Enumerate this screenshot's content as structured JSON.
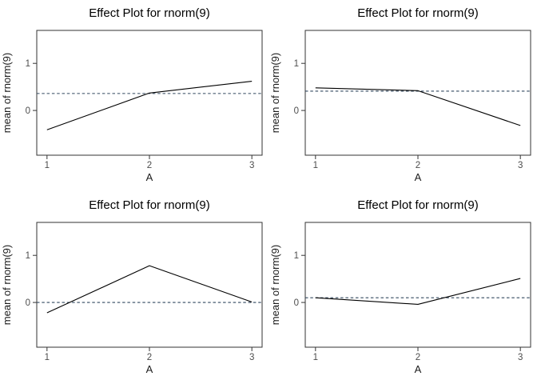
{
  "chart_data": [
    {
      "type": "line",
      "title": "Effect Plot for rnorm(9)",
      "xlabel": "A",
      "ylabel": "mean of rnorm(9)",
      "x": [
        1,
        2,
        3
      ],
      "values": [
        -0.41,
        0.37,
        0.62
      ],
      "mean_line": 0.36,
      "mean_line_style": "dashed",
      "xticks": [
        "1",
        "2",
        "3"
      ],
      "yticks": [
        "0",
        "1"
      ],
      "xlim": [
        0.9,
        3.1
      ],
      "ylim": [
        -0.95,
        1.7
      ],
      "grid": false,
      "legend": "none"
    },
    {
      "type": "line",
      "title": "Effect Plot for rnorm(9)",
      "xlabel": "A",
      "ylabel": "mean of rnorm(9)",
      "x": [
        1,
        2,
        3
      ],
      "values": [
        0.48,
        0.42,
        -0.32
      ],
      "mean_line": 0.41,
      "mean_line_style": "dashed",
      "xticks": [
        "1",
        "2",
        "3"
      ],
      "yticks": [
        "0",
        "1"
      ],
      "xlim": [
        0.9,
        3.1
      ],
      "ylim": [
        -0.95,
        1.7
      ],
      "grid": false,
      "legend": "none"
    },
    {
      "type": "line",
      "title": "Effect Plot for rnorm(9)",
      "xlabel": "A",
      "ylabel": "mean of rnorm(9)",
      "x": [
        1,
        2,
        3
      ],
      "values": [
        -0.22,
        0.78,
        0.01
      ],
      "mean_line": 0.0,
      "mean_line_style": "dashed",
      "xticks": [
        "1",
        "2",
        "3"
      ],
      "yticks": [
        "0",
        "1"
      ],
      "xlim": [
        0.9,
        3.1
      ],
      "ylim": [
        -0.95,
        1.7
      ],
      "grid": false,
      "legend": "none"
    },
    {
      "type": "line",
      "title": "Effect Plot for rnorm(9)",
      "xlabel": "A",
      "ylabel": "mean of rnorm(9)",
      "x": [
        1,
        2,
        3
      ],
      "values": [
        0.1,
        -0.04,
        0.51
      ],
      "mean_line": 0.1,
      "mean_line_style": "dashed",
      "xticks": [
        "1",
        "2",
        "3"
      ],
      "yticks": [
        "0",
        "1"
      ],
      "xlim": [
        0.9,
        3.1
      ],
      "ylim": [
        -0.95,
        1.7
      ],
      "grid": false,
      "legend": "none"
    }
  ],
  "colors": {
    "effect_line": "#000000",
    "mean_line": "#32485f",
    "panel_border": "#333333",
    "tick_label": "#4d4d4d",
    "title": "#000000",
    "background": "#ffffff"
  }
}
